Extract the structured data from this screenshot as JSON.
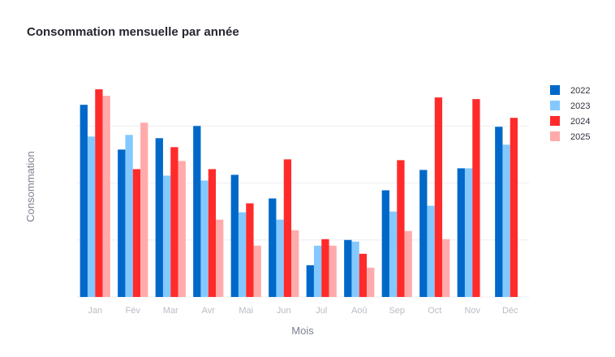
{
  "chart_data": {
    "type": "bar",
    "title": "Consommation mensuelle par année",
    "xlabel": "Mois",
    "ylabel": "Consommation",
    "categories": [
      "Jan",
      "Fév",
      "Mar",
      "Avr",
      "Mai",
      "Jun",
      "Jul",
      "Aoû",
      "Sep",
      "Oct",
      "Nov",
      "Déc"
    ],
    "ylim": [
      0,
      280
    ],
    "grid": true,
    "legend_position": "top-right",
    "series": [
      {
        "name": "2022",
        "color": "#0068c9",
        "values": [
          236,
          181,
          195,
          210,
          150,
          121,
          39,
          70,
          131,
          156,
          158,
          209
        ]
      },
      {
        "name": "2023",
        "color": "#83c9ff",
        "values": [
          197,
          199,
          149,
          143,
          104,
          95,
          63,
          68,
          105,
          112,
          158,
          187
        ]
      },
      {
        "name": "2024",
        "color": "#ff2b2b",
        "values": [
          255,
          157,
          184,
          157,
          115,
          169,
          71,
          53,
          168,
          245,
          243,
          220
        ]
      },
      {
        "name": "2025",
        "color": "#ffabab",
        "values": [
          247,
          214,
          167,
          95,
          63,
          82,
          63,
          36,
          81,
          71,
          null,
          null
        ]
      }
    ]
  }
}
